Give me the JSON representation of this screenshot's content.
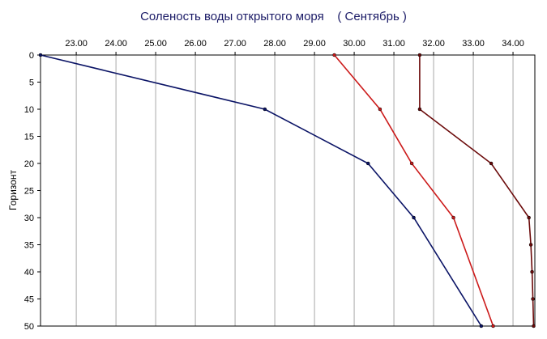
{
  "chart_data": {
    "type": "line",
    "title": "Соленость воды открытого моря    ( Сентябрь )",
    "ylabel": "Горизонт",
    "xlabel": "",
    "x_axis_position": "top",
    "y_axis_inverted": true,
    "xlim": [
      22.1,
      34.55
    ],
    "ylim": [
      0,
      50
    ],
    "x_ticks": [
      "23.00",
      "24.00",
      "25.00",
      "26.00",
      "27.00",
      "28.00",
      "29.00",
      "30.00",
      "31.00",
      "32.00",
      "33.00",
      "34.00"
    ],
    "y_ticks": [
      "0",
      "5",
      "10",
      "15",
      "20",
      "25",
      "30",
      "35",
      "40",
      "45",
      "50"
    ],
    "grid": true,
    "legend": "none",
    "series": [
      {
        "color": "#0b1466",
        "points": [
          [
            22.1,
            0
          ],
          [
            27.75,
            10
          ],
          [
            30.35,
            20
          ],
          [
            31.5,
            30
          ],
          [
            33.2,
            50
          ]
        ]
      },
      {
        "color": "#cc1a1a",
        "points": [
          [
            29.5,
            0
          ],
          [
            30.65,
            10
          ],
          [
            31.45,
            20
          ],
          [
            32.5,
            30
          ],
          [
            33.5,
            50
          ]
        ]
      },
      {
        "color": "#6b0a0a",
        "points": [
          [
            31.65,
            0
          ],
          [
            31.65,
            10
          ],
          [
            33.45,
            20
          ],
          [
            34.4,
            30
          ],
          [
            34.45,
            35
          ],
          [
            34.48,
            40
          ],
          [
            34.5,
            45
          ],
          [
            34.52,
            50
          ]
        ]
      }
    ]
  }
}
